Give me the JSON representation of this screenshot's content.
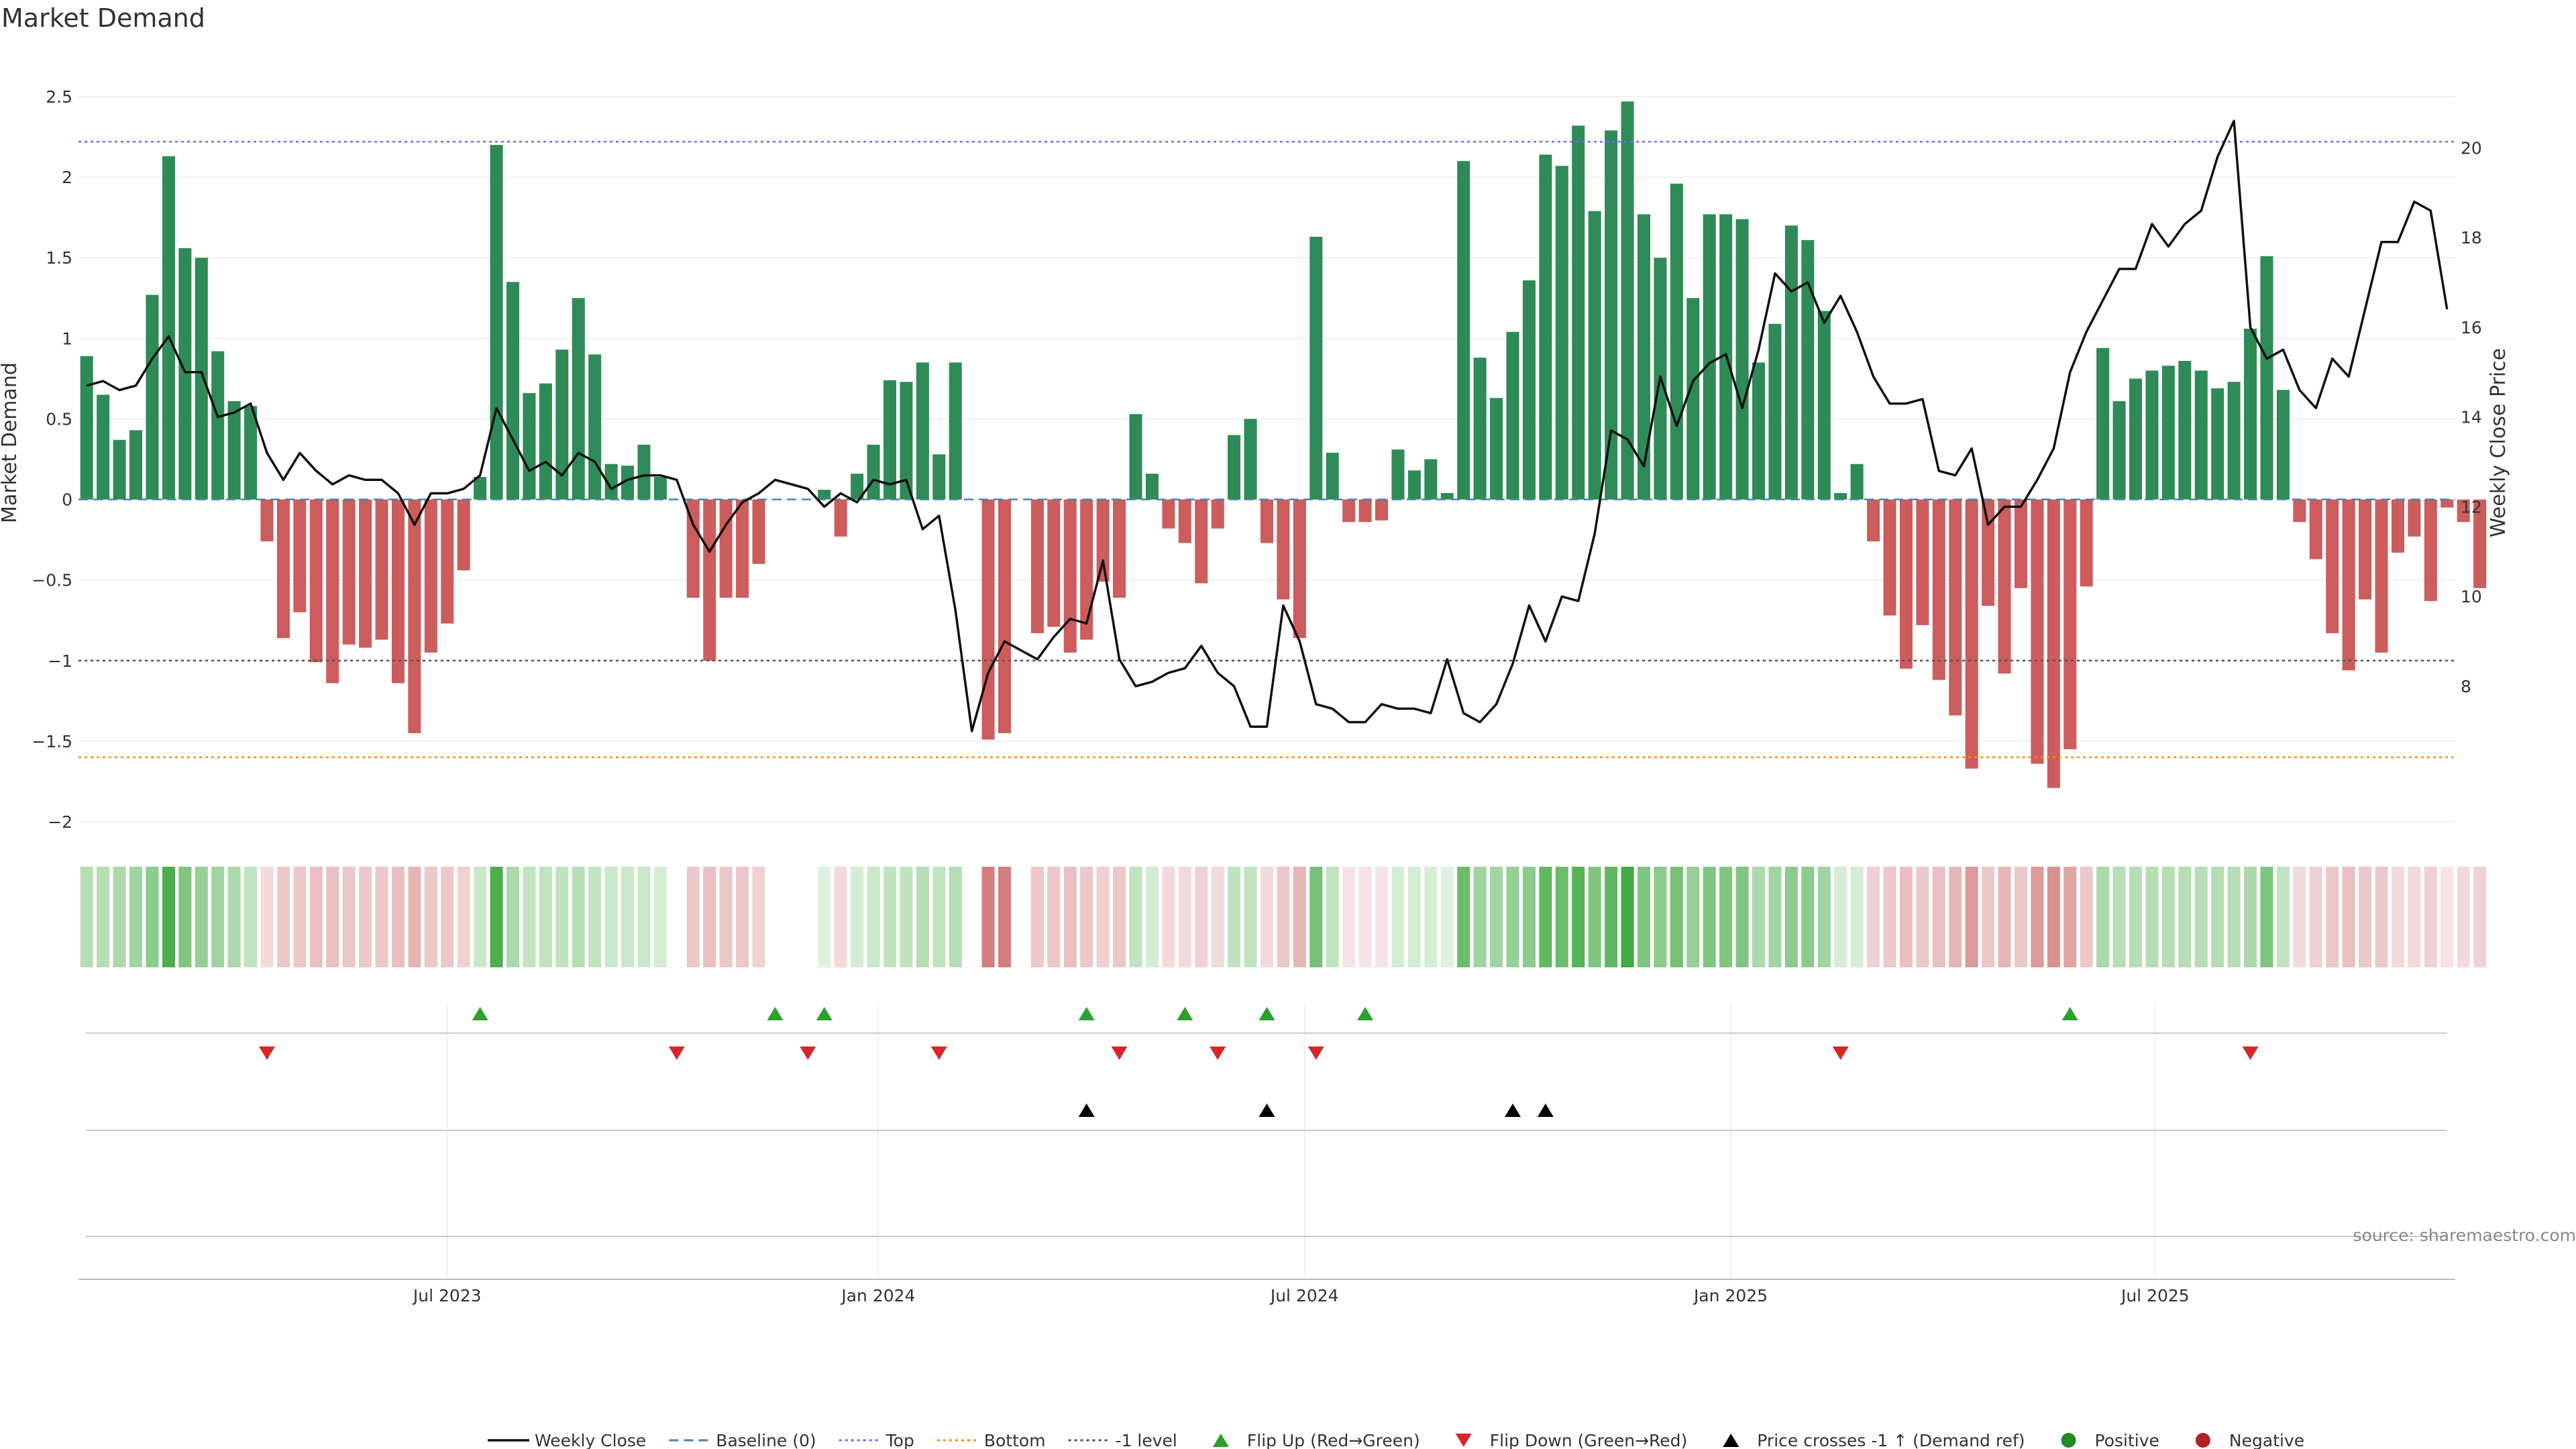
{
  "chart_data": {
    "type": "bar",
    "title": "Market Demand",
    "ylabel": "Market Demand",
    "y2label": "Weekly Close Price",
    "ylim": [
      -2.05,
      2.6
    ],
    "y2lim": [
      4.8,
      21.5
    ],
    "yticks": [
      2.5,
      2,
      1.5,
      1,
      0.5,
      0,
      -0.5,
      -1,
      -1.5,
      -2
    ],
    "ytick_labels": [
      "2.5",
      "2",
      "1.5",
      "1",
      "0.5",
      "0",
      "−0.5",
      "−1",
      "−1.5",
      "−2"
    ],
    "y2ticks": [
      20,
      18,
      16,
      14,
      12,
      10,
      8
    ],
    "y2tick_labels": [
      "20",
      "18",
      "16",
      "14",
      "12",
      "10",
      "8"
    ],
    "x_range": [
      0,
      144
    ],
    "xtick_positions": [
      22,
      48.3,
      74.3,
      100.3,
      126.2
    ],
    "xtick_labels": [
      "Jul 2023",
      "Jan 2024",
      "Jul 2024",
      "Jan 2025",
      "Jul 2025"
    ],
    "reference_lines": {
      "top": 2.22,
      "bottom": -1.6,
      "minus_one": -1,
      "baseline": 0
    },
    "colors": {
      "positive": "#2e8b57",
      "negative": "#cd5c5c",
      "price_line": "#111111",
      "top_line": "#7b68ee",
      "bottom_line": "#ff8c00",
      "minus_one_line": "#555555",
      "baseline": "#4682b4",
      "flip_up": "#2ca02c",
      "flip_down": "#d62728",
      "price_cross": "#000000",
      "positive_dot": "#228b22",
      "negative_dot": "#b22222"
    },
    "demand": [
      0.89,
      0.65,
      0.37,
      0.43,
      1.27,
      2.13,
      1.56,
      1.5,
      0.92,
      0.61,
      0.58,
      -0.26,
      -0.86,
      -0.7,
      -1.01,
      -1.14,
      -0.9,
      -0.92,
      -0.87,
      -1.14,
      -1.45,
      -0.95,
      -0.77,
      -0.44,
      0.14,
      2.2,
      1.35,
      0.66,
      0.72,
      0.93,
      1.25,
      0.9,
      0.22,
      0.21,
      0.34,
      0.14,
      0,
      -0.61,
      -1,
      -0.61,
      -0.61,
      -0.4,
      0,
      0,
      0,
      0.06,
      -0.23,
      0.16,
      0.34,
      0.74,
      0.73,
      0.85,
      0.28,
      0.85,
      0,
      -1.49,
      -1.45,
      0,
      -0.83,
      -0.79,
      -0.95,
      -0.87,
      -0.51,
      -0.61,
      0.53,
      0.16,
      -0.18,
      -0.27,
      -0.52,
      -0.18,
      0.4,
      0.5,
      -0.27,
      -0.62,
      -0.86,
      1.63,
      0.29,
      -0.14,
      -0.14,
      -0.13,
      0.31,
      0.18,
      0.25,
      0.04,
      2.1,
      0.88,
      0.63,
      1.04,
      1.36,
      2.14,
      2.07,
      2.32,
      1.79,
      2.29,
      2.47,
      1.77,
      1.5,
      1.96,
      1.25,
      1.77,
      1.77,
      1.74,
      0.85,
      1.09,
      1.7,
      1.61,
      1.17,
      0.04,
      0.22,
      -0.26,
      -0.72,
      -1.05,
      -0.78,
      -1.12,
      -1.34,
      -1.67,
      -0.66,
      -1.08,
      -0.55,
      -1.64,
      -1.79,
      -1.55,
      -0.54,
      0.94,
      0.61,
      0.75,
      0.8,
      0.83,
      0.86,
      0.8,
      0.69,
      0.73,
      1.06,
      1.51,
      0.68,
      -0.14,
      -0.37,
      -0.83,
      -1.06,
      -0.62,
      -0.95,
      -0.33,
      -0.23,
      -0.63,
      -0.05,
      -0.14,
      -0.55
    ],
    "weekly_close": [
      14.7,
      14.8,
      14.6,
      14.7,
      15.3,
      15.8,
      15.0,
      15.0,
      14.0,
      14.1,
      14.3,
      13.2,
      12.6,
      13.2,
      12.8,
      12.5,
      12.7,
      12.6,
      12.6,
      12.3,
      11.6,
      12.3,
      12.3,
      12.4,
      12.7,
      14.2,
      13.5,
      12.8,
      13.0,
      12.7,
      13.2,
      13.0,
      12.4,
      12.6,
      12.7,
      12.7,
      12.6,
      11.6,
      11.0,
      11.6,
      12.1,
      12.3,
      12.6,
      12.5,
      12.4,
      12.0,
      12.3,
      12.1,
      12.6,
      12.5,
      12.6,
      11.5,
      11.8,
      9.7,
      7.0,
      8.3,
      9.0,
      8.8,
      8.6,
      9.1,
      9.5,
      9.4,
      10.8,
      8.6,
      8.0,
      8.1,
      8.3,
      8.4,
      8.9,
      8.3,
      8.0,
      7.1,
      7.1,
      9.8,
      9.0,
      7.6,
      7.5,
      7.2,
      7.2,
      7.6,
      7.5,
      7.5,
      7.4,
      8.6,
      7.4,
      7.2,
      7.6,
      8.5,
      9.8,
      9.0,
      10.0,
      9.9,
      11.4,
      13.7,
      13.5,
      12.9,
      14.9,
      13.8,
      14.8,
      15.2,
      15.4,
      14.2,
      15.5,
      17.2,
      16.8,
      17.0,
      16.1,
      16.7,
      15.9,
      14.9,
      14.3,
      14.3,
      14.4,
      12.8,
      12.7,
      13.3,
      11.6,
      12.0,
      12.0,
      12.6,
      13.3,
      15.0,
      15.9,
      16.6,
      17.3,
      17.3,
      18.3,
      17.8,
      18.3,
      18.6,
      19.8,
      20.6,
      16.0,
      15.3,
      15.5,
      14.6,
      14.2,
      15.3,
      14.9,
      16.4,
      17.9,
      17.9,
      18.8,
      18.6,
      16.4
    ],
    "strip_intensity": [
      0.35,
      0.35,
      0.4,
      0.45,
      0.55,
      0.85,
      0.6,
      0.5,
      0.45,
      0.4,
      0.3,
      0.2,
      0.3,
      0.3,
      0.35,
      0.35,
      0.3,
      0.3,
      0.3,
      0.35,
      0.4,
      0.3,
      0.3,
      0.25,
      0.25,
      0.85,
      0.4,
      0.3,
      0.3,
      0.3,
      0.35,
      0.3,
      0.25,
      0.25,
      0.25,
      0.2,
      0.2,
      0.3,
      0.35,
      0.3,
      0.3,
      0.25,
      0.15,
      0.15,
      0.15,
      0.15,
      0.2,
      0.2,
      0.25,
      0.3,
      0.3,
      0.35,
      0.3,
      0.35,
      0.2,
      0.7,
      0.7,
      0.2,
      0.3,
      0.3,
      0.35,
      0.3,
      0.25,
      0.3,
      0.3,
      0.2,
      0.2,
      0.2,
      0.25,
      0.2,
      0.3,
      0.3,
      0.2,
      0.3,
      0.4,
      0.65,
      0.3,
      0.15,
      0.15,
      0.15,
      0.2,
      0.2,
      0.2,
      0.15,
      0.7,
      0.45,
      0.45,
      0.5,
      0.55,
      0.75,
      0.7,
      0.8,
      0.6,
      0.75,
      0.9,
      0.6,
      0.55,
      0.65,
      0.5,
      0.6,
      0.6,
      0.6,
      0.4,
      0.45,
      0.55,
      0.55,
      0.45,
      0.2,
      0.2,
      0.25,
      0.3,
      0.35,
      0.3,
      0.35,
      0.4,
      0.55,
      0.3,
      0.4,
      0.3,
      0.55,
      0.6,
      0.5,
      0.3,
      0.4,
      0.35,
      0.35,
      0.35,
      0.35,
      0.35,
      0.35,
      0.35,
      0.35,
      0.4,
      0.6,
      0.3,
      0.2,
      0.25,
      0.3,
      0.35,
      0.3,
      0.3,
      0.2,
      0.2,
      0.25,
      0.15,
      0.2,
      0.25
    ],
    "flip_up_weeks": [
      24,
      42,
      45,
      61,
      67,
      72,
      78,
      121
    ],
    "flip_down_weeks": [
      11,
      36,
      44,
      52,
      63,
      69,
      75,
      107,
      132
    ],
    "price_cross_weeks": [
      61,
      72,
      87,
      89
    ],
    "source": "source: sharemaestro.com",
    "legend": [
      {
        "label": "Weekly Close",
        "kind": "line",
        "color_key": "price_line"
      },
      {
        "label": "Baseline (0)",
        "kind": "dash",
        "color_key": "baseline"
      },
      {
        "label": "Top",
        "kind": "dot",
        "color_key": "top_line"
      },
      {
        "label": "Bottom",
        "kind": "dot",
        "color_key": "bottom_line"
      },
      {
        "label": "-1 level",
        "kind": "dot",
        "color_key": "minus_one_line"
      },
      {
        "label": "Flip Up (Red→Green)",
        "kind": "tri-up",
        "color_key": "flip_up"
      },
      {
        "label": "Flip Down (Green→Red)",
        "kind": "tri-down",
        "color_key": "flip_down"
      },
      {
        "label": "Price crosses -1 ↑ (Demand ref)",
        "kind": "tri-up",
        "color_key": "price_cross"
      },
      {
        "label": "Positive",
        "kind": "circle",
        "color_key": "positive_dot"
      },
      {
        "label": "Negative",
        "kind": "circle",
        "color_key": "negative_dot"
      }
    ]
  }
}
